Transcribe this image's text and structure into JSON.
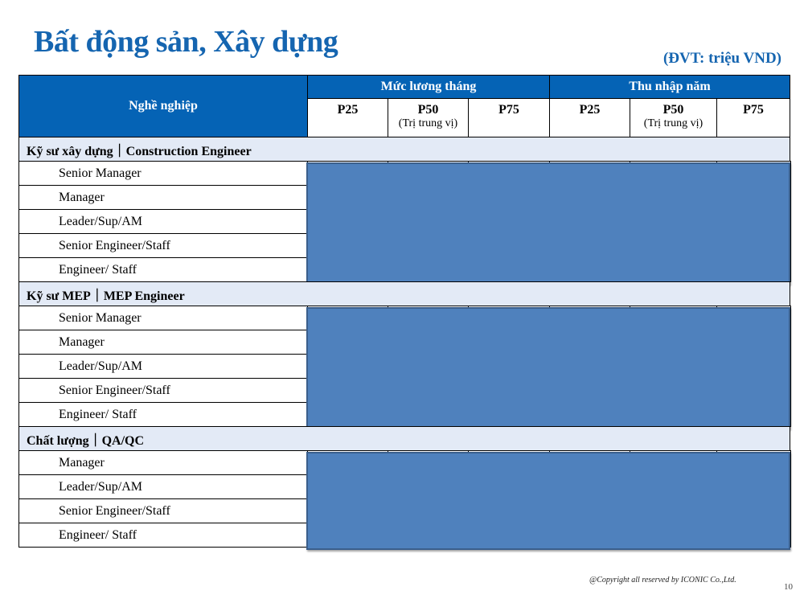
{
  "title": "Bất động sản, Xây dựng",
  "unit": "(ĐVT: triệu VND)",
  "header": {
    "occupation": "Nghề nghiệp",
    "monthly": "Mức lương tháng",
    "annual": "Thu nhập năm",
    "cols": [
      {
        "label": "P25",
        "note": ""
      },
      {
        "label": "P50",
        "note": "(Trị trung vị)"
      },
      {
        "label": "P75",
        "note": ""
      },
      {
        "label": "P25",
        "note": ""
      },
      {
        "label": "P50",
        "note": "(Trị trung vị)"
      },
      {
        "label": "P75",
        "note": ""
      }
    ]
  },
  "groups": [
    {
      "name": "Kỹ sư xây dựng｜Construction Engineer",
      "items": [
        "Senior Manager",
        "Manager",
        "Leader/Sup/AM",
        "Senior Engineer/Staff",
        "Engineer/ Staff"
      ]
    },
    {
      "name": "Kỹ sư MEP｜MEP Engineer",
      "items": [
        "Senior Manager",
        "Manager",
        "Leader/Sup/AM",
        "Senior Engineer/Staff",
        "Engineer/ Staff"
      ]
    },
    {
      "name": "Chất lượng｜QA/QC",
      "items": [
        "Manager",
        "Leader/Sup/AM",
        "Senior Engineer/Staff",
        "Engineer/ Staff"
      ]
    }
  ],
  "colors": {
    "header": "#0563b5",
    "group_row": "#e3eaf6",
    "redaction": "#4f81bd"
  },
  "footer": {
    "copyright": "@Copyright all reserved by ICONIC Co.,Ltd.",
    "page": "10"
  }
}
